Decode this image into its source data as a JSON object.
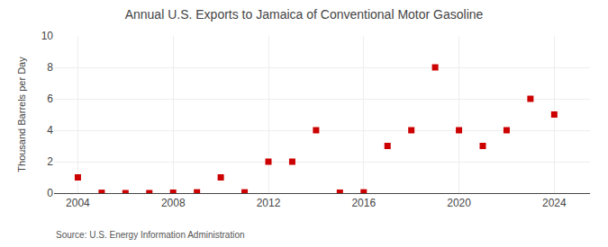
{
  "chart_data": {
    "type": "scatter",
    "title": "Annual U.S. Exports to Jamaica of Conventional Motor Gasoline",
    "ylabel": "Thousand Barrels per Day",
    "annotations": [
      "Source: U.S. Energy Information Administration"
    ],
    "x": [
      2004,
      2005,
      2006,
      2007,
      2008,
      2009,
      2010,
      2011,
      2012,
      2013,
      2014,
      2015,
      2016,
      2017,
      2018,
      2019,
      2020,
      2021,
      2022,
      2023,
      2024
    ],
    "values": [
      1.0,
      0.02,
      0.0,
      0.0,
      0.03,
      0.05,
      1.0,
      0.05,
      2.0,
      2.0,
      4.0,
      0.03,
      0.05,
      3.0,
      4.0,
      8.0,
      4.0,
      3.0,
      4.0,
      6.0,
      5.0
    ],
    "color": "#cc0000",
    "marker": "square",
    "xlim": [
      2003.0,
      2025.5
    ],
    "xticks": [
      2004,
      2008,
      2012,
      2016,
      2020,
      2024
    ],
    "ylim": [
      0,
      10
    ],
    "yticks": [
      0,
      2,
      4,
      6,
      8,
      10
    ],
    "grid": true
  }
}
